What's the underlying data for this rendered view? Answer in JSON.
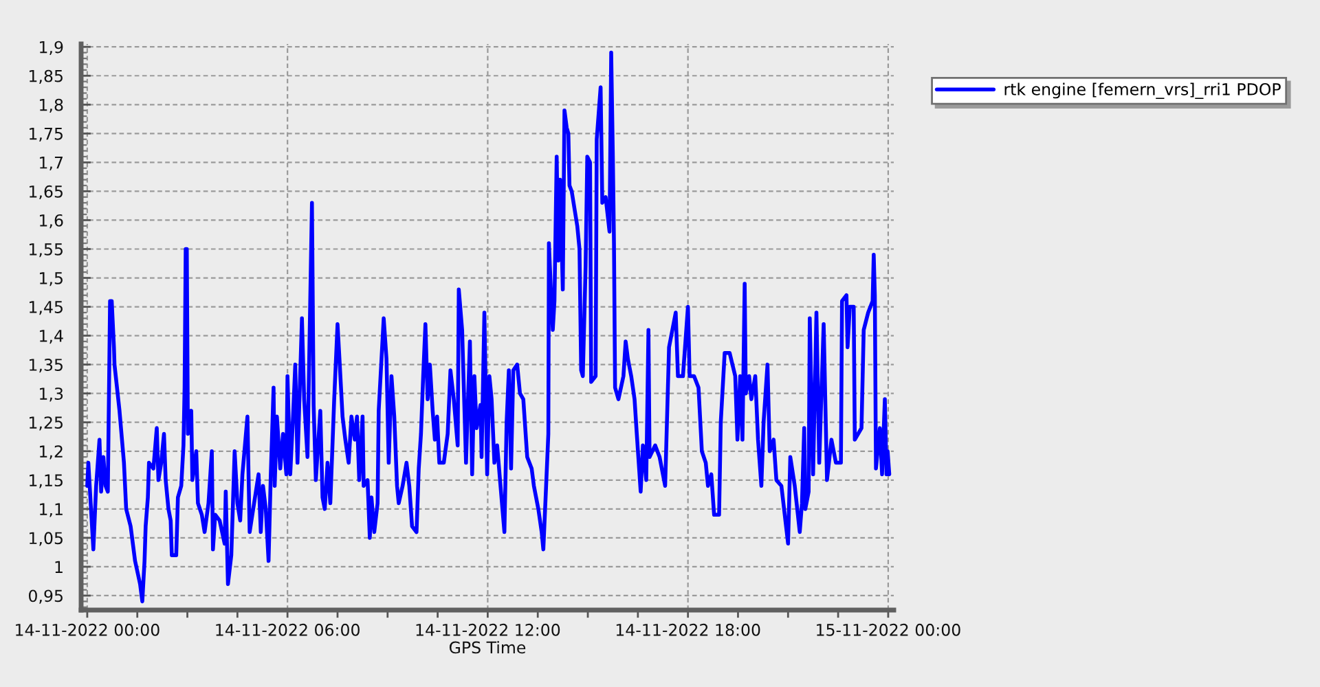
{
  "chart_data": {
    "type": "line",
    "xlabel": "GPS Time",
    "grid": true,
    "legend": "top right",
    "line_style": "solid",
    "xlim": [
      "2022-11-13T23:49",
      "2022-11-15T00:10"
    ],
    "ylim": [
      0.925,
      1.905
    ],
    "xticks": [
      {
        "value": "2022-11-14T00:00",
        "label": "14-11-2022 00:00"
      },
      {
        "value": "2022-11-14T01:30",
        "label": null
      },
      {
        "value": "2022-11-14T03:00",
        "label": null
      },
      {
        "value": "2022-11-14T04:30",
        "label": null
      },
      {
        "value": "2022-11-14T06:00",
        "label": "14-11-2022 06:00"
      },
      {
        "value": "2022-11-14T07:30",
        "label": null
      },
      {
        "value": "2022-11-14T09:00",
        "label": null
      },
      {
        "value": "2022-11-14T10:30",
        "label": null
      },
      {
        "value": "2022-11-14T12:00",
        "label": "14-11-2022 12:00"
      },
      {
        "value": "2022-11-14T13:30",
        "label": null
      },
      {
        "value": "2022-11-14T15:00",
        "label": null
      },
      {
        "value": "2022-11-14T16:30",
        "label": null
      },
      {
        "value": "2022-11-14T18:00",
        "label": "14-11-2022 18:00"
      },
      {
        "value": "2022-11-14T19:30",
        "label": null
      },
      {
        "value": "2022-11-14T21:00",
        "label": null
      },
      {
        "value": "2022-11-14T22:30",
        "label": null
      },
      {
        "value": "2022-11-15T00:00",
        "label": "15-11-2022 00:00"
      }
    ],
    "yticks": [
      {
        "value": 0.93,
        "label": null
      },
      {
        "value": 0.94,
        "label": null
      },
      {
        "value": 0.95,
        "label": "0,95"
      },
      {
        "value": 0.96,
        "label": null
      },
      {
        "value": 0.97,
        "label": null
      },
      {
        "value": 0.98,
        "label": null
      },
      {
        "value": 0.99,
        "label": null
      },
      1,
      {
        "value": 1.01,
        "label": null
      },
      {
        "value": 1.02,
        "label": null
      },
      {
        "value": 1.03,
        "label": null
      },
      {
        "value": 1.04,
        "label": null
      },
      {
        "value": 1.05,
        "label": "1,05"
      },
      {
        "value": 1.06,
        "label": null
      },
      {
        "value": 1.07,
        "label": null
      },
      {
        "value": 1.08,
        "label": null
      },
      {
        "value": 1.09,
        "label": null
      },
      {
        "value": 1.1,
        "label": "1,1"
      },
      {
        "value": 1.11,
        "label": null
      },
      {
        "value": 1.12,
        "label": null
      },
      {
        "value": 1.13,
        "label": null
      },
      {
        "value": 1.14,
        "label": null
      },
      {
        "value": 1.15,
        "label": "1,15"
      },
      {
        "value": 1.16,
        "label": null
      },
      {
        "value": 1.17,
        "label": null
      },
      {
        "value": 1.18,
        "label": null
      },
      {
        "value": 1.19,
        "label": null
      },
      {
        "value": 1.2,
        "label": "1,2"
      },
      {
        "value": 1.21,
        "label": null
      },
      {
        "value": 1.22,
        "label": null
      },
      {
        "value": 1.23,
        "label": null
      },
      {
        "value": 1.24,
        "label": null
      },
      {
        "value": 1.25,
        "label": "1,25"
      },
      {
        "value": 1.26,
        "label": null
      },
      {
        "value": 1.27,
        "label": null
      },
      {
        "value": 1.28,
        "label": null
      },
      {
        "value": 1.29,
        "label": null
      },
      {
        "value": 1.3,
        "label": "1,3"
      },
      {
        "value": 1.31,
        "label": null
      },
      {
        "value": 1.32,
        "label": null
      },
      {
        "value": 1.33,
        "label": null
      },
      {
        "value": 1.34,
        "label": null
      },
      {
        "value": 1.35,
        "label": "1,35"
      },
      {
        "value": 1.36,
        "label": null
      },
      {
        "value": 1.37,
        "label": null
      },
      {
        "value": 1.38,
        "label": null
      },
      {
        "value": 1.39,
        "label": null
      },
      {
        "value": 1.4,
        "label": "1,4"
      },
      {
        "value": 1.41,
        "label": null
      },
      {
        "value": 1.42,
        "label": null
      },
      {
        "value": 1.43,
        "label": null
      },
      {
        "value": 1.44,
        "label": null
      },
      {
        "value": 1.45,
        "label": "1,45"
      },
      {
        "value": 1.46,
        "label": null
      },
      {
        "value": 1.47,
        "label": null
      },
      {
        "value": 1.48,
        "label": null
      },
      {
        "value": 1.49,
        "label": null
      },
      {
        "value": 1.5,
        "label": "1,5"
      },
      {
        "value": 1.51,
        "label": null
      },
      {
        "value": 1.52,
        "label": null
      },
      {
        "value": 1.53,
        "label": null
      },
      {
        "value": 1.54,
        "label": null
      },
      {
        "value": 1.55,
        "label": "1,55"
      },
      {
        "value": 1.56,
        "label": null
      },
      {
        "value": 1.57,
        "label": null
      },
      {
        "value": 1.58,
        "label": null
      },
      {
        "value": 1.59,
        "label": null
      },
      {
        "value": 1.6,
        "label": "1,6"
      },
      {
        "value": 1.61,
        "label": null
      },
      {
        "value": 1.62,
        "label": null
      },
      {
        "value": 1.63,
        "label": null
      },
      {
        "value": 1.64,
        "label": null
      },
      {
        "value": 1.65,
        "label": "1,65"
      },
      {
        "value": 1.66,
        "label": null
      },
      {
        "value": 1.67,
        "label": null
      },
      {
        "value": 1.68,
        "label": null
      },
      {
        "value": 1.69,
        "label": null
      },
      {
        "value": 1.7,
        "label": "1,7"
      },
      {
        "value": 1.71,
        "label": null
      },
      {
        "value": 1.72,
        "label": null
      },
      {
        "value": 1.73,
        "label": null
      },
      {
        "value": 1.74,
        "label": null
      },
      {
        "value": 1.75,
        "label": "1,75"
      },
      {
        "value": 1.76,
        "label": null
      },
      {
        "value": 1.77,
        "label": null
      },
      {
        "value": 1.78,
        "label": null
      },
      {
        "value": 1.79,
        "label": null
      },
      {
        "value": 1.8,
        "label": "1,8"
      },
      {
        "value": 1.81,
        "label": null
      },
      {
        "value": 1.82,
        "label": null
      },
      {
        "value": 1.83,
        "label": null
      },
      {
        "value": 1.84,
        "label": null
      },
      {
        "value": 1.85,
        "label": "1,85"
      },
      {
        "value": 1.86,
        "label": null
      },
      {
        "value": 1.87,
        "label": null
      },
      {
        "value": 1.88,
        "label": null
      },
      {
        "value": 1.89,
        "label": null
      },
      {
        "value": 1.9,
        "label": "1,9"
      }
    ],
    "x": [
      "2022-11-14T00:00",
      "2022-11-14T00:02",
      "2022-11-14T00:08",
      "2022-11-14T00:11",
      "2022-11-14T00:16",
      "2022-11-14T00:22",
      "2022-11-14T00:25",
      "2022-11-14T00:29",
      "2022-11-14T00:33",
      "2022-11-14T00:37",
      "2022-11-14T00:41",
      "2022-11-14T00:44",
      "2022-11-14T00:48",
      "2022-11-14T00:49",
      "2022-11-14T00:58",
      "2022-11-14T01:06",
      "2022-11-14T01:10",
      "2022-11-14T01:18",
      "2022-11-14T01:26",
      "2022-11-14T01:35",
      "2022-11-14T01:39",
      "2022-11-14T01:43",
      "2022-11-14T01:45",
      "2022-11-14T01:49",
      "2022-11-14T01:51",
      "2022-11-14T01:59",
      "2022-11-14T02:05",
      "2022-11-14T02:08",
      "2022-11-14T02:13",
      "2022-11-14T02:18",
      "2022-11-14T02:21",
      "2022-11-14T02:26",
      "2022-11-14T02:30",
      "2022-11-14T02:32",
      "2022-11-14T02:40",
      "2022-11-14T02:43",
      "2022-11-14T02:49",
      "2022-11-14T02:53",
      "2022-11-14T02:55",
      "2022-11-14T02:57",
      "2022-11-14T02:59",
      "2022-11-14T03:01",
      "2022-11-14T03:07",
      "2022-11-14T03:09",
      "2022-11-14T03:16",
      "2022-11-14T03:19",
      "2022-11-14T03:26",
      "2022-11-14T03:31",
      "2022-11-14T03:38",
      "2022-11-14T03:44",
      "2022-11-14T03:46",
      "2022-11-14T03:50",
      "2022-11-14T03:58",
      "2022-11-14T04:07",
      "2022-11-14T04:09",
      "2022-11-14T04:13",
      "2022-11-14T04:19",
      "2022-11-14T04:25",
      "2022-11-14T04:30",
      "2022-11-14T04:35",
      "2022-11-14T04:39",
      "2022-11-14T04:48",
      "2022-11-14T04:52",
      "2022-11-14T05:00",
      "2022-11-14T05:08",
      "2022-11-14T05:12",
      "2022-11-14T05:16",
      "2022-11-14T05:21",
      "2022-11-14T05:26",
      "2022-11-14T05:30",
      "2022-11-14T05:35",
      "2022-11-14T05:37",
      "2022-11-14T05:41",
      "2022-11-14T05:47",
      "2022-11-14T05:52",
      "2022-11-14T05:58",
      "2022-11-14T06:00",
      "2022-11-14T06:05",
      "2022-11-14T06:10",
      "2022-11-14T06:14",
      "2022-11-14T06:18",
      "2022-11-14T06:26",
      "2022-11-14T06:30",
      "2022-11-14T06:36",
      "2022-11-14T06:44",
      "2022-11-14T06:47",
      "2022-11-14T06:51",
      "2022-11-14T06:59",
      "2022-11-14T07:03",
      "2022-11-14T07:07",
      "2022-11-14T07:12",
      "2022-11-14T07:17",
      "2022-11-14T07:24",
      "2022-11-14T07:30",
      "2022-11-14T07:34",
      "2022-11-14T07:39",
      "2022-11-14T07:44",
      "2022-11-14T07:50",
      "2022-11-14T07:55",
      "2022-11-14T08:01",
      "2022-11-14T08:05",
      "2022-11-14T08:09",
      "2022-11-14T08:15",
      "2022-11-14T08:17",
      "2022-11-14T08:24",
      "2022-11-14T08:28",
      "2022-11-14T08:31",
      "2022-11-14T08:36",
      "2022-11-14T08:42",
      "2022-11-14T08:44",
      "2022-11-14T08:53",
      "2022-11-14T08:58",
      "2022-11-14T09:02",
      "2022-11-14T09:07",
      "2022-11-14T09:12",
      "2022-11-14T09:17",
      "2022-11-14T09:20",
      "2022-11-14T09:27",
      "2022-11-14T09:34",
      "2022-11-14T09:39",
      "2022-11-14T09:44",
      "2022-11-14T09:52",
      "2022-11-14T09:56",
      "2022-11-14T10:00",
      "2022-11-14T10:04",
      "2022-11-14T10:08",
      "2022-11-14T10:12",
      "2022-11-14T10:16",
      "2022-11-14T10:21",
      "2022-11-14T10:25",
      "2022-11-14T10:29",
      "2022-11-14T10:33",
      "2022-11-14T10:41",
      "2022-11-14T10:48",
      "2022-11-14T10:53",
      "2022-11-14T10:59",
      "2022-11-14T11:06",
      "2022-11-14T11:08",
      "2022-11-14T11:14",
      "2022-11-14T11:21",
      "2022-11-14T11:28",
      "2022-11-14T11:32",
      "2022-11-14T11:36",
      "2022-11-14T11:40",
      "2022-11-14T11:47",
      "2022-11-14T11:49",
      "2022-11-14T11:54",
      "2022-11-14T11:59",
      "2022-11-14T12:03",
      "2022-11-14T12:07",
      "2022-11-14T12:12",
      "2022-11-14T12:17",
      "2022-11-14T12:23",
      "2022-11-14T12:30",
      "2022-11-14T12:34",
      "2022-11-14T12:38",
      "2022-11-14T12:42",
      "2022-11-14T12:46",
      "2022-11-14T12:53",
      "2022-11-14T12:58",
      "2022-11-14T13:04",
      "2022-11-14T13:11",
      "2022-11-14T13:19",
      "2022-11-14T13:23",
      "2022-11-14T13:31",
      "2022-11-14T13:37",
      "2022-11-14T13:40",
      "2022-11-14T13:45",
      "2022-11-14T13:49",
      "2022-11-14T13:50",
      "2022-11-14T13:54",
      "2022-11-14T13:57",
      "2022-11-14T14:00",
      "2022-11-14T14:04",
      "2022-11-14T14:07",
      "2022-11-14T14:10",
      "2022-11-14T14:15",
      "2022-11-14T14:18",
      "2022-11-14T14:22",
      "2022-11-14T14:25",
      "2022-11-14T14:27",
      "2022-11-14T14:31",
      "2022-11-14T14:41",
      "2022-11-14T14:45",
      "2022-11-14T14:48",
      "2022-11-14T14:51",
      "2022-11-14T14:56",
      "2022-11-14T14:59",
      "2022-11-14T15:04",
      "2022-11-14T15:06",
      "2022-11-14T15:14",
      "2022-11-14T15:16",
      "2022-11-14T15:23",
      "2022-11-14T15:26",
      "2022-11-14T15:32",
      "2022-11-14T15:39",
      "2022-11-14T15:42",
      "2022-11-14T15:45",
      "2022-11-14T15:47",
      "2022-11-14T15:49",
      "2022-11-14T15:55",
      "2022-11-14T16:04",
      "2022-11-14T16:08",
      "2022-11-14T16:12",
      "2022-11-14T16:18",
      "2022-11-14T16:24",
      "2022-11-14T16:28",
      "2022-11-14T16:35",
      "2022-11-14T16:39",
      "2022-11-14T16:45",
      "2022-11-14T16:49",
      "2022-11-14T16:51",
      "2022-11-14T17:01",
      "2022-11-14T17:09",
      "2022-11-14T17:19",
      "2022-11-14T17:26",
      "2022-11-14T17:38",
      "2022-11-14T17:42",
      "2022-11-14T17:51",
      "2022-11-14T18:00",
      "2022-11-14T18:03",
      "2022-11-14T18:11",
      "2022-11-14T18:19",
      "2022-11-14T18:25",
      "2022-11-14T18:32",
      "2022-11-14T18:36",
      "2022-11-14T18:42",
      "2022-11-14T18:47",
      "2022-11-14T18:56",
      "2022-11-14T18:59",
      "2022-11-14T19:06",
      "2022-11-14T19:15",
      "2022-11-14T19:25",
      "2022-11-14T19:29",
      "2022-11-14T19:34",
      "2022-11-14T19:38",
      "2022-11-14T19:42",
      "2022-11-14T19:44",
      "2022-11-14T19:50",
      "2022-11-14T19:54",
      "2022-11-14T20:01",
      "2022-11-14T20:06",
      "2022-11-14T20:12",
      "2022-11-14T20:16",
      "2022-11-14T20:23",
      "2022-11-14T20:27",
      "2022-11-14T20:34",
      "2022-11-14T20:39",
      "2022-11-14T20:48",
      "2022-11-14T21:00",
      "2022-11-14T21:04",
      "2022-11-14T21:12",
      "2022-11-14T21:21",
      "2022-11-14T21:25",
      "2022-11-14T21:29",
      "2022-11-14T21:31",
      "2022-11-14T21:37",
      "2022-11-14T21:39",
      "2022-11-14T21:45",
      "2022-11-14T21:51",
      "2022-11-14T21:56",
      "2022-11-14T22:04",
      "2022-11-14T22:10",
      "2022-11-14T22:18",
      "2022-11-14T22:26",
      "2022-11-14T22:35",
      "2022-11-14T22:37",
      "2022-11-14T22:45",
      "2022-11-14T22:47",
      "2022-11-14T22:51",
      "2022-11-14T22:58",
      "2022-11-14T23:00",
      "2022-11-14T23:12",
      "2022-11-14T23:16",
      "2022-11-14T23:24",
      "2022-11-14T23:32",
      "2022-11-14T23:34",
      "2022-11-14T23:36",
      "2022-11-14T23:38",
      "2022-11-14T23:45",
      "2022-11-14T23:49",
      "2022-11-14T23:54",
      "2022-11-14T23:57",
      "2022-11-14T23:59",
      "2022-11-15T00:02"
    ],
    "series": [
      {
        "name": "rtk engine [femern_vrs]_rri1 PDOP",
        "color": "#0000ff",
        "values": [
          1.14,
          1.18,
          1.08,
          1.03,
          1.14,
          1.22,
          1.13,
          1.19,
          1.14,
          1.13,
          1.46,
          1.46,
          1.38,
          1.35,
          1.27,
          1.18,
          1.1,
          1.07,
          1.01,
          0.97,
          0.94,
          1.01,
          1.07,
          1.12,
          1.18,
          1.17,
          1.24,
          1.15,
          1.18,
          1.23,
          1.15,
          1.1,
          1.08,
          1.02,
          1.02,
          1.12,
          1.14,
          1.21,
          1.31,
          1.55,
          1.55,
          1.23,
          1.27,
          1.15,
          1.2,
          1.11,
          1.09,
          1.06,
          1.11,
          1.2,
          1.03,
          1.09,
          1.08,
          1.04,
          1.13,
          0.97,
          1.02,
          1.2,
          1.11,
          1.08,
          1.16,
          1.26,
          1.06,
          1.11,
          1.16,
          1.06,
          1.14,
          1.1,
          1.01,
          1.16,
          1.31,
          1.14,
          1.26,
          1.17,
          1.23,
          1.16,
          1.33,
          1.16,
          1.26,
          1.35,
          1.18,
          1.43,
          1.29,
          1.19,
          1.63,
          1.28,
          1.15,
          1.27,
          1.12,
          1.1,
          1.18,
          1.11,
          1.29,
          1.42,
          1.35,
          1.26,
          1.22,
          1.18,
          1.26,
          1.22,
          1.26,
          1.15,
          1.26,
          1.14,
          1.15,
          1.05,
          1.12,
          1.06,
          1.11,
          1.27,
          1.43,
          1.36,
          1.18,
          1.33,
          1.26,
          1.14,
          1.11,
          1.14,
          1.18,
          1.14,
          1.07,
          1.06,
          1.17,
          1.23,
          1.33,
          1.42,
          1.29,
          1.35,
          1.27,
          1.22,
          1.26,
          1.18,
          1.18,
          1.23,
          1.34,
          1.29,
          1.21,
          1.48,
          1.41,
          1.18,
          1.39,
          1.16,
          1.33,
          1.24,
          1.28,
          1.19,
          1.44,
          1.16,
          1.33,
          1.29,
          1.18,
          1.21,
          1.14,
          1.06,
          1.25,
          1.34,
          1.17,
          1.34,
          1.35,
          1.3,
          1.29,
          1.19,
          1.17,
          1.14,
          1.1,
          1.06,
          1.03,
          1.14,
          1.23,
          1.56,
          1.47,
          1.41,
          1.46,
          1.71,
          1.53,
          1.67,
          1.48,
          1.79,
          1.76,
          1.75,
          1.66,
          1.65,
          1.59,
          1.55,
          1.34,
          1.33,
          1.52,
          1.71,
          1.7,
          1.32,
          1.33,
          1.74,
          1.83,
          1.63,
          1.64,
          1.58,
          1.89,
          1.71,
          1.56,
          1.31,
          1.29,
          1.33,
          1.39,
          1.36,
          1.33,
          1.29,
          1.23,
          1.13,
          1.21,
          1.15,
          1.41,
          1.19,
          1.21,
          1.19,
          1.14,
          1.38,
          1.44,
          1.33,
          1.33,
          1.45,
          1.33,
          1.33,
          1.31,
          1.2,
          1.18,
          1.14,
          1.16,
          1.09,
          1.09,
          1.25,
          1.37,
          1.37,
          1.33,
          1.22,
          1.33,
          1.22,
          1.49,
          1.3,
          1.33,
          1.29,
          1.33,
          1.22,
          1.14,
          1.25,
          1.35,
          1.2,
          1.22,
          1.15,
          1.14,
          1.04,
          1.19,
          1.14,
          1.06,
          1.11,
          1.24,
          1.1,
          1.13,
          1.43,
          1.16,
          1.44,
          1.18,
          1.42,
          1.15,
          1.22,
          1.18,
          1.18,
          1.46,
          1.47,
          1.38,
          1.45,
          1.45,
          1.22,
          1.24,
          1.41,
          1.44,
          1.46,
          1.54,
          1.47,
          1.17,
          1.24,
          1.16,
          1.29,
          1.16,
          1.2,
          1.16
        ]
      }
    ]
  }
}
